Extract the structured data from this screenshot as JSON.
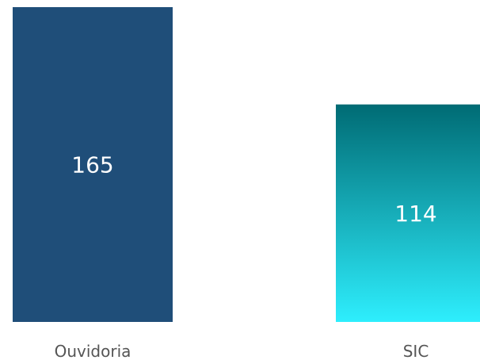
{
  "chart_data": {
    "type": "bar",
    "categories": [
      "Ouvidoria",
      "SIC"
    ],
    "values": [
      165,
      114
    ],
    "data_labels": [
      "165",
      "114"
    ],
    "title": "",
    "xlabel": "",
    "ylabel": "",
    "ylim": [
      0,
      165
    ],
    "grid": false,
    "legend": "none",
    "colors": {
      "bar_0": "#1f4e79",
      "bar_1_top": "#006b74",
      "bar_1_bottom": "#2eeefd",
      "data_label": "#ffffff",
      "category_label": "#555555"
    }
  }
}
